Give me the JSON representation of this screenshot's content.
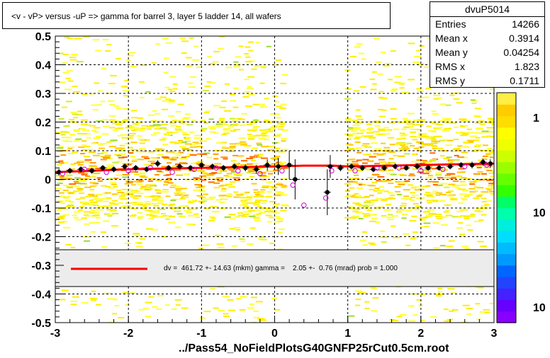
{
  "title": "<v - vP>       versus  -uP =>  gamma for barrel 3, layer 5 ladder 14, all wafers",
  "stats": {
    "name": "dvuP5014",
    "rows": [
      {
        "label": "Entries",
        "value": "14266"
      },
      {
        "label": "Mean x",
        "value": "0.3914"
      },
      {
        "label": "Mean y",
        "value": "0.04254"
      },
      {
        "label": "RMS x",
        "value": "1.823"
      },
      {
        "label": "RMS y",
        "value": "0.1711"
      }
    ]
  },
  "footer": "../Pass54_NoFieldPlotsG40GNFP25rCut0.5cm.root",
  "fit_label": "dv =  461.72 +- 14.63 (mkm) gamma =    2.05 +-  0.76 (mrad) prob = 1.000",
  "colors": {
    "fit_line": "#ff0000",
    "profile_markers": "#000000",
    "open_markers": "#cc00cc",
    "legend_band": "#ececec"
  },
  "chart_data": {
    "type": "heatmap",
    "xlim": [
      -3,
      3
    ],
    "ylim": [
      -0.5,
      0.5
    ],
    "x_ticks": [
      "-3",
      "-2",
      "-1",
      "0",
      "1",
      "2",
      "3"
    ],
    "y_ticks": [
      "-0.5",
      "-0.4",
      "-0.3",
      "-0.2",
      "-0.1",
      "0",
      "0.1",
      "0.2",
      "0.3",
      "0.4",
      "0.5"
    ],
    "grid": true,
    "colorbar_labels": [
      "1",
      "10",
      "10"
    ],
    "fit": {
      "x": [
        -3.0,
        -2.0,
        -1.0,
        0.0,
        0.4,
        0.8,
        1.0,
        2.0,
        3.0
      ],
      "y": [
        0.025,
        0.035,
        0.04,
        0.045,
        0.048,
        0.048,
        0.045,
        0.05,
        0.055
      ]
    },
    "profile_points": {
      "x": [
        -2.95,
        -2.8,
        -2.65,
        -2.5,
        -2.35,
        -2.2,
        -2.05,
        -1.9,
        -1.75,
        -1.6,
        -1.45,
        -1.3,
        -1.15,
        -1.0,
        -0.85,
        -0.7,
        -0.55,
        -0.4,
        -0.25,
        -0.1,
        0.05,
        0.2,
        0.28,
        0.72,
        0.76,
        0.9,
        1.05,
        1.2,
        1.35,
        1.5,
        1.65,
        1.8,
        1.95,
        2.1,
        2.25,
        2.4,
        2.55,
        2.7,
        2.85,
        2.95
      ],
      "y": [
        0.025,
        0.03,
        0.035,
        0.03,
        0.04,
        0.035,
        0.045,
        0.04,
        0.035,
        0.055,
        0.04,
        0.045,
        0.04,
        0.05,
        0.045,
        0.04,
        0.045,
        0.04,
        0.035,
        0.05,
        0.045,
        0.05,
        0.0,
        -0.045,
        0.045,
        0.04,
        0.045,
        0.04,
        0.035,
        0.04,
        0.045,
        0.04,
        0.045,
        0.04,
        0.04,
        0.045,
        0.05,
        0.05,
        0.06,
        0.055
      ],
      "err": [
        0.012,
        0.01,
        0.01,
        0.01,
        0.01,
        0.01,
        0.01,
        0.01,
        0.01,
        0.012,
        0.01,
        0.01,
        0.01,
        0.012,
        0.01,
        0.01,
        0.01,
        0.012,
        0.015,
        0.02,
        0.03,
        0.05,
        0.07,
        0.08,
        0.04,
        0.012,
        0.01,
        0.01,
        0.01,
        0.01,
        0.01,
        0.01,
        0.01,
        0.01,
        0.01,
        0.01,
        0.01,
        0.012,
        0.012,
        0.015
      ]
    },
    "open_points": {
      "x": [
        -2.9,
        -2.6,
        -2.3,
        -2.0,
        -1.7,
        -1.4,
        -1.1,
        -0.8,
        -0.5,
        -0.2,
        0.1,
        0.25,
        0.4,
        0.7,
        0.78,
        1.1,
        1.4,
        1.7,
        2.0,
        2.3,
        2.6,
        2.9
      ],
      "y": [
        0.02,
        0.035,
        0.025,
        0.03,
        0.04,
        0.025,
        0.035,
        0.04,
        0.03,
        0.02,
        0.03,
        -0.02,
        -0.09,
        -0.065,
        0.03,
        0.03,
        0.04,
        0.04,
        0.03,
        0.035,
        0.045,
        0.05
      ]
    }
  }
}
